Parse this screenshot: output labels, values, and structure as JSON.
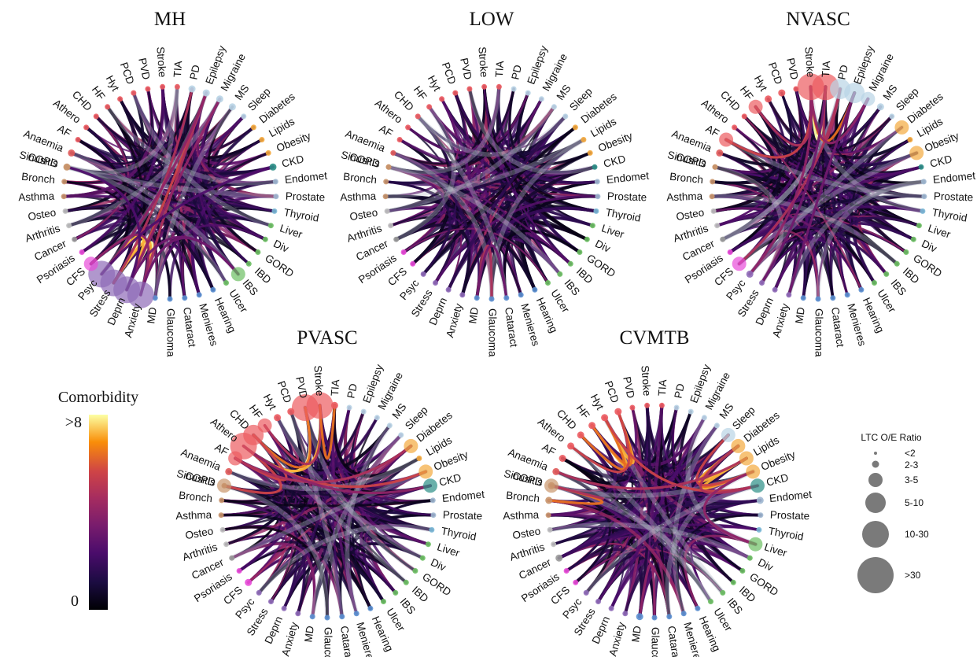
{
  "conditions": [
    "COPD",
    "Anaemia",
    "AF",
    "Athero",
    "CHD",
    "HF",
    "Hyt",
    "PCD",
    "PVD",
    "Stroke",
    "TIA",
    "PD",
    "Epilepsy",
    "Migraine",
    "MS",
    "Sleep",
    "Diabetes",
    "Lipids",
    "Obesity",
    "CKD",
    "Endomet",
    "Prostate",
    "Thyroid",
    "Liver",
    "Div",
    "GORD",
    "IBD",
    "IBS",
    "Ulcer",
    "Hearing",
    "Menieres",
    "Cataract",
    "Glaucoma",
    "MD",
    "Anxiety",
    "Deprn",
    "Stress",
    "Psyc",
    "CFS",
    "Psoriasis",
    "Cancer",
    "Arthritis",
    "Osteo",
    "Asthma",
    "Bronch",
    "Sinusitis"
  ],
  "group_colors": {
    "resp": "#c9956b",
    "blood": "#e05a5a",
    "cardio": "#ec5b60",
    "neuro": "#b9d4e6",
    "metabolic": "#f4a93d",
    "renal": "#2b8f86",
    "repro": "#9fb7d0",
    "endocrine": "#7ab8d6",
    "digestive": "#6cbf62",
    "sensory": "#5a8fd0",
    "mental": "#8f6bb8",
    "skin": "#e84bd8",
    "msk": "#c0c0c0",
    "cancer": "#999999"
  },
  "condition_groups": [
    "resp",
    "blood",
    "cardio",
    "cardio",
    "cardio",
    "cardio",
    "cardio",
    "cardio",
    "cardio",
    "cardio",
    "cardio",
    "neuro",
    "neuro",
    "neuro",
    "neuro",
    "neuro",
    "metabolic",
    "metabolic",
    "metabolic",
    "renal",
    "repro",
    "repro",
    "endocrine",
    "digestive",
    "digestive",
    "digestive",
    "digestive",
    "digestive",
    "digestive",
    "sensory",
    "sensory",
    "sensory",
    "sensory",
    "sensory",
    "mental",
    "mental",
    "mental",
    "mental",
    "skin",
    "skin",
    "cancer",
    "msk",
    "msk",
    "resp",
    "resp",
    "resp"
  ],
  "panels": [
    {
      "title": "MH",
      "ratios": {
        "Anxiety": 5,
        "Deprn": 5,
        "Stress": 5,
        "Psyc": 5,
        "CFS": 3,
        "IBS": 3,
        "COPD": 2,
        "Anaemia": 2,
        "Epilepsy": 2,
        "Migraine": 2,
        "PD": 2,
        "CKD": 2,
        "MS": 2
      },
      "hot_links": [
        {
          "from": "Deprn",
          "to": "Anxiety",
          "level": 10
        },
        {
          "from": "Stress",
          "to": "Deprn",
          "level": 10
        },
        {
          "from": "Psyc",
          "to": "Stress",
          "level": 9
        },
        {
          "from": "Psyc",
          "to": "Deprn",
          "level": 9
        },
        {
          "from": "Stress",
          "to": "Anxiety",
          "level": 9
        },
        {
          "from": "Deprn",
          "to": "Epilepsy",
          "level": 7
        },
        {
          "from": "Stress",
          "to": "PD",
          "level": 6
        },
        {
          "from": "Anxiety",
          "to": "Epilepsy",
          "level": 6
        },
        {
          "from": "Psyc",
          "to": "Epilepsy",
          "level": 5
        },
        {
          "from": "Deprn",
          "to": "Migraine",
          "level": 5
        },
        {
          "from": "CFS",
          "to": "Anxiety",
          "level": 5
        },
        {
          "from": "Deprn",
          "to": "IBS",
          "level": 4
        },
        {
          "from": "Anxiety",
          "to": "IBS",
          "level": 4
        },
        {
          "from": "Deprn",
          "to": "COPD",
          "level": 3
        },
        {
          "from": "Psyc",
          "to": "CKD",
          "level": 3
        }
      ]
    },
    {
      "title": "LOW",
      "ratios": {},
      "hot_links": [
        {
          "from": "MD",
          "to": "Glaucoma",
          "level": 6
        },
        {
          "from": "MD",
          "to": "Cataract",
          "level": 4
        }
      ]
    },
    {
      "title": "NVASC",
      "ratios": {
        "Stroke": 5,
        "TIA": 5,
        "PD": 4,
        "Epilepsy": 4,
        "Migraine": 3,
        "AF": 3,
        "HF": 3,
        "CFS": 3,
        "Diabetes": 3,
        "Obesity": 3,
        "Hyt": 2,
        "PCD": 2,
        "Psyc": 2,
        "MS": 2,
        "Anaemia": 2
      },
      "hot_links": [
        {
          "from": "Stroke",
          "to": "TIA",
          "level": 10
        },
        {
          "from": "AF",
          "to": "Stroke",
          "level": 7
        },
        {
          "from": "HF",
          "to": "Stroke",
          "level": 6
        },
        {
          "from": "Stroke",
          "to": "Epilepsy",
          "level": 8
        },
        {
          "from": "TIA",
          "to": "PD",
          "level": 6
        },
        {
          "from": "CFS",
          "to": "PD",
          "level": 6
        },
        {
          "from": "Psyc",
          "to": "Stroke",
          "level": 5
        },
        {
          "from": "Stroke",
          "to": "Migraine",
          "level": 5
        },
        {
          "from": "Anxiety",
          "to": "Epilepsy",
          "level": 4
        },
        {
          "from": "Stress",
          "to": "TIA",
          "level": 4
        }
      ]
    },
    {
      "title": "PVASC",
      "ratios": {
        "Athero": 5,
        "Stroke": 5,
        "PVD": 5,
        "CHD": 4,
        "HF": 3,
        "AF": 3,
        "COPD": 3,
        "Anaemia": 2,
        "Hyt": 2,
        "TIA": 2,
        "PCD": 2,
        "Diabetes": 3,
        "Obesity": 3,
        "CKD": 3,
        "CFS": 2
      },
      "hot_links": [
        {
          "from": "Athero",
          "to": "PVD",
          "level": 10
        },
        {
          "from": "Athero",
          "to": "Stroke",
          "level": 9
        },
        {
          "from": "CHD",
          "to": "PVD",
          "level": 8
        },
        {
          "from": "COPD",
          "to": "Athero",
          "level": 7
        },
        {
          "from": "AF",
          "to": "CHD",
          "level": 7
        },
        {
          "from": "HF",
          "to": "Stroke",
          "level": 6
        },
        {
          "from": "Athero",
          "to": "Obesity",
          "level": 7
        },
        {
          "from": "AF",
          "to": "Diabetes",
          "level": 6
        },
        {
          "from": "Stroke",
          "to": "TIA",
          "level": 8
        },
        {
          "from": "Athero",
          "to": "CKD",
          "level": 5
        }
      ]
    },
    {
      "title": "CVMTB",
      "ratios": {
        "COPD": 3,
        "Anaemia": 2,
        "AF": 2,
        "Athero": 2,
        "CHD": 2,
        "HF": 2,
        "Hyt": 2,
        "PCD": 2,
        "Sleep": 3,
        "Diabetes": 3,
        "Lipids": 3,
        "Obesity": 3,
        "CKD": 3,
        "Liver": 3,
        "Endomet": 2,
        "Sinusitis": 2,
        "Bronch": 2,
        "MD": 2,
        "Cancer": 2
      },
      "hot_links": [
        {
          "from": "COPD",
          "to": "Bronch",
          "level": 8
        },
        {
          "from": "Sinusitis",
          "to": "COPD",
          "level": 6
        },
        {
          "from": "HF",
          "to": "Hyt",
          "level": 9
        },
        {
          "from": "Hyt",
          "to": "PCD",
          "level": 9
        },
        {
          "from": "CHD",
          "to": "Hyt",
          "level": 8
        },
        {
          "from": "HF",
          "to": "PCD",
          "level": 8
        },
        {
          "from": "Athero",
          "to": "PCD",
          "level": 7
        },
        {
          "from": "Diabetes",
          "to": "Lipids",
          "level": 9
        },
        {
          "from": "Lipids",
          "to": "Obesity",
          "level": 9
        },
        {
          "from": "Diabetes",
          "to": "Obesity",
          "level": 8
        },
        {
          "from": "Sleep",
          "to": "Obesity",
          "level": 7
        },
        {
          "from": "Hyt",
          "to": "CKD",
          "level": 7
        },
        {
          "from": "Diabetes",
          "to": "CKD",
          "level": 6
        },
        {
          "from": "Anaemia",
          "to": "Lipids",
          "level": 6
        },
        {
          "from": "Obesity",
          "to": "Liver",
          "level": 5
        },
        {
          "from": "MD",
          "to": "Glaucoma",
          "level": 5
        }
      ]
    }
  ],
  "colorbar": {
    "title": "Comorbidity",
    "max_label": ">8",
    "min_label": "0"
  },
  "size_legend": {
    "title": "LTC O/E Ratio",
    "entries": [
      "<2",
      "2-3",
      "3-5",
      "5-10",
      "10-30",
      ">30"
    ]
  }
}
